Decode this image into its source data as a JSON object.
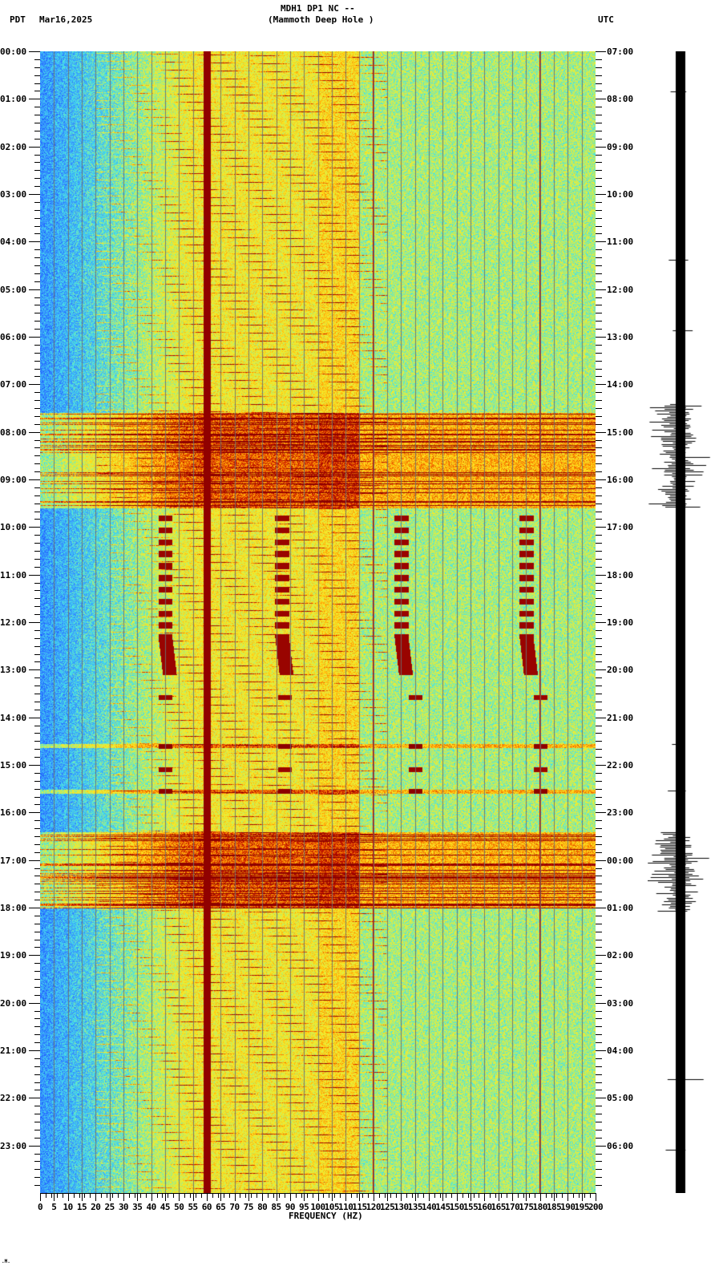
{
  "header": {
    "timezone_left": "PDT",
    "date": "Mar16,2025",
    "station_line": "MDH1 DP1 NC --",
    "station_name": "(Mammoth Deep Hole )",
    "timezone_right": "UTC"
  },
  "footer": {
    "corner_mark": ".M."
  },
  "chart_data": {
    "type": "heatmap",
    "title": "MDH1 DP1 NC -- (Mammoth Deep Hole )",
    "subtitle": "Mar16,2025",
    "xlabel": "FREQUENCY (HZ)",
    "ylabel_left": "PDT",
    "ylabel_right": "UTC",
    "xlim": [
      0,
      200
    ],
    "ylim_hours": [
      0,
      24
    ],
    "x_ticks": [
      0,
      5,
      10,
      15,
      20,
      25,
      30,
      35,
      40,
      45,
      50,
      55,
      60,
      65,
      70,
      75,
      80,
      85,
      90,
      95,
      100,
      105,
      110,
      115,
      120,
      125,
      130,
      135,
      140,
      145,
      150,
      155,
      160,
      165,
      170,
      175,
      180,
      185,
      190,
      195,
      200
    ],
    "y_ticks_left": [
      "00:00",
      "01:00",
      "02:00",
      "03:00",
      "04:00",
      "05:00",
      "06:00",
      "07:00",
      "08:00",
      "09:00",
      "10:00",
      "11:00",
      "12:00",
      "13:00",
      "14:00",
      "15:00",
      "16:00",
      "17:00",
      "18:00",
      "19:00",
      "20:00",
      "21:00",
      "22:00",
      "23:00"
    ],
    "y_ticks_right": [
      "07:00",
      "08:00",
      "09:00",
      "10:00",
      "11:00",
      "12:00",
      "13:00",
      "14:00",
      "15:00",
      "16:00",
      "17:00",
      "18:00",
      "19:00",
      "20:00",
      "21:00",
      "22:00",
      "23:00",
      "00:00",
      "01:00",
      "02:00",
      "03:00",
      "04:00",
      "05:00",
      "06:00"
    ],
    "minor_ticks_per_hour": 6,
    "grid": true,
    "gridline_spacing_hz": 5,
    "colormap": [
      "#1e5aff",
      "#3ca0ff",
      "#46e6e6",
      "#d2f050",
      "#ffe61e",
      "#ff8c00",
      "#c81400",
      "#8c0000"
    ],
    "persistent_lines_hz": [
      60,
      120,
      180
    ],
    "strong_line_hz": 60,
    "chirp_ridges": {
      "start_hz": 20,
      "end_hz": 125,
      "period_minutes": 10
    },
    "events": [
      {
        "start_hour": 7.6,
        "end_hour": 9.6,
        "label": "broadband noise burst"
      },
      {
        "start_hour": 9.7,
        "end_hour": 13.1,
        "bands_hz": [
          45,
          87,
          130,
          175
        ],
        "label": "pulsed tonal series"
      },
      {
        "start_hour": 13.5,
        "end_hour": 15.9,
        "bands_hz": [
          45,
          88,
          135,
          180
        ],
        "label": "intermittent tonal blips"
      },
      {
        "start_hour": 16.4,
        "end_hour": 18.0,
        "label": "broadband noise burst"
      }
    ],
    "seismogram": {
      "quiet_hours": [
        [
          0,
          7.1
        ],
        [
          18.2,
          24
        ]
      ],
      "active_hours": [
        [
          7.4,
          9.6
        ],
        [
          16.4,
          18.1
        ]
      ]
    }
  }
}
